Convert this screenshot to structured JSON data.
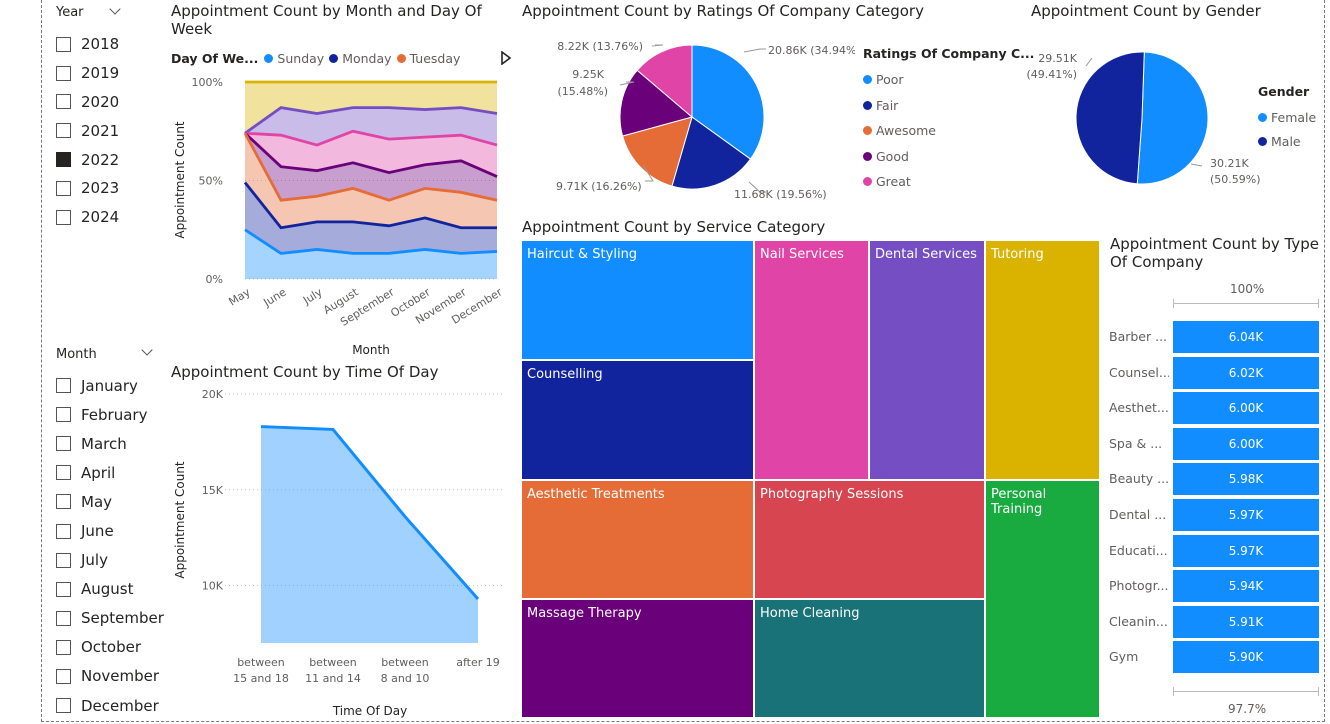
{
  "year_slicer": {
    "title": "Year",
    "items": [
      {
        "label": "2018",
        "checked": false
      },
      {
        "label": "2019",
        "checked": false
      },
      {
        "label": "2020",
        "checked": false
      },
      {
        "label": "2021",
        "checked": false
      },
      {
        "label": "2022",
        "checked": true
      },
      {
        "label": "2023",
        "checked": false
      },
      {
        "label": "2024",
        "checked": false
      }
    ]
  },
  "month_slicer": {
    "title": "Month",
    "items": [
      {
        "label": "January",
        "checked": false
      },
      {
        "label": "February",
        "checked": false
      },
      {
        "label": "March",
        "checked": false
      },
      {
        "label": "April",
        "checked": false
      },
      {
        "label": "May",
        "checked": false
      },
      {
        "label": "June",
        "checked": false
      },
      {
        "label": "July",
        "checked": false
      },
      {
        "label": "August",
        "checked": false
      },
      {
        "label": "September",
        "checked": false
      },
      {
        "label": "October",
        "checked": false
      },
      {
        "label": "November",
        "checked": false
      },
      {
        "label": "December",
        "checked": false
      }
    ]
  },
  "area_chart": {
    "title": "Appointment Count by Month and Day Of Week",
    "legend_title": "Day Of We...",
    "legend": [
      {
        "label": "Sunday",
        "color": "#118dff"
      },
      {
        "label": "Monday",
        "color": "#12239e"
      },
      {
        "label": "Tuesday",
        "color": "#e66c37"
      }
    ],
    "y_ticks": [
      "100%",
      "50%",
      "0%"
    ],
    "ylabel": "Appointment Count",
    "xlabel": "Month",
    "x_ticks": [
      "May",
      "June",
      "July",
      "August",
      "September",
      "October",
      "November",
      "December"
    ]
  },
  "line_chart": {
    "title": "Appointment Count by Time Of Day",
    "y_ticks": [
      "20K",
      "15K",
      "10K"
    ],
    "ylabel": "Appointment Count",
    "xlabel": "Time Of Day",
    "x_ticks": [
      [
        "between",
        "15 and 18"
      ],
      [
        "between",
        "11 and 14"
      ],
      [
        "between",
        "8 and 10"
      ],
      [
        "after 19"
      ]
    ]
  },
  "ratings_pie": {
    "title": "Appointment Count by Ratings Of Company Category",
    "legend_title": "Ratings Of Company C...",
    "legend": [
      {
        "label": "Poor",
        "color": "#118dff"
      },
      {
        "label": "Fair",
        "color": "#12239e"
      },
      {
        "label": "Awesome",
        "color": "#e66c37"
      },
      {
        "label": "Good",
        "color": "#6b007b"
      },
      {
        "label": "Great",
        "color": "#e044a7"
      }
    ],
    "labels": {
      "poor": "20.86K (34.94%)",
      "fair": "11.68K (19.56%)",
      "awesome": "9.71K (16.26%)",
      "good_1": "9.25K",
      "good_2": "(15.48%)",
      "great": "8.22K (13.76%)"
    }
  },
  "gender_pie": {
    "title": "Appointment Count by Gender",
    "legend_title": "Gender",
    "legend": [
      {
        "label": "Female",
        "color": "#118dff"
      },
      {
        "label": "Male",
        "color": "#12239e"
      }
    ],
    "labels": {
      "male_1": "29.51K",
      "male_2": "(49.41%)",
      "female_1": "30.21K",
      "female_2": "(50.59%)"
    }
  },
  "treemap": {
    "title": "Appointment Count by Service Category",
    "cells": [
      {
        "label": "Haircut & Styling",
        "color": "#118dff"
      },
      {
        "label": "Counselling",
        "color": "#12239e"
      },
      {
        "label": "Nail Services",
        "color": "#e044a7"
      },
      {
        "label": "Dental Services",
        "color": "#744ec2"
      },
      {
        "label": "Tutoring",
        "color": "#d9b300"
      },
      {
        "label": "Aesthetic Treatments",
        "color": "#e66c37"
      },
      {
        "label": "Photography Sessions",
        "color": "#d64550"
      },
      {
        "label": "Personal Training",
        "color": "#1aab40"
      },
      {
        "label": "Massage Therapy",
        "color": "#6b007b"
      },
      {
        "label": "Home Cleaning",
        "color": "#197278"
      }
    ]
  },
  "bar_chart": {
    "title": "Appointment Count by Type Of Company",
    "top_label": "100%",
    "bottom_label": "97.7%",
    "bar_color": "#118dff",
    "rows": [
      {
        "label": "Barber ...",
        "value": "6.04K"
      },
      {
        "label": "Counsel...",
        "value": "6.02K"
      },
      {
        "label": "Aesthet...",
        "value": "6.00K"
      },
      {
        "label": "Spa & ...",
        "value": "6.00K"
      },
      {
        "label": "Beauty ...",
        "value": "5.98K"
      },
      {
        "label": "Dental ...",
        "value": "5.97K"
      },
      {
        "label": "Educati...",
        "value": "5.97K"
      },
      {
        "label": "Photogr...",
        "value": "5.94K"
      },
      {
        "label": "Cleanin...",
        "value": "5.91K"
      },
      {
        "label": "Gym",
        "value": "5.90K"
      }
    ]
  },
  "chart_data": [
    {
      "type": "area",
      "stacking": "percent",
      "title": "Appointment Count by Month and Day Of Week",
      "xlabel": "Month",
      "ylabel": "Appointment Count",
      "categories": [
        "May",
        "June",
        "July",
        "August",
        "September",
        "October",
        "November",
        "December"
      ],
      "ylim": [
        0,
        100
      ],
      "cumulative_series": [
        {
          "name": "Sunday",
          "color": "#118dff",
          "values": [
            25,
            13,
            15,
            13,
            13,
            15,
            13,
            14
          ]
        },
        {
          "name": "Monday",
          "color": "#12239e",
          "values": [
            49,
            26,
            29,
            29,
            27,
            31,
            26,
            26
          ]
        },
        {
          "name": "Tuesday",
          "color": "#e66c37",
          "values": [
            74,
            40,
            42,
            46,
            40,
            46,
            44,
            40
          ]
        },
        {
          "color": "#6b007b",
          "values": [
            74,
            57,
            55,
            59,
            54,
            58,
            60,
            52
          ]
        },
        {
          "color": "#e044a7",
          "values": [
            74,
            73,
            68,
            75,
            71,
            72,
            73,
            68
          ]
        },
        {
          "color": "#744ec2",
          "values": [
            74,
            87,
            84,
            87,
            87,
            86,
            87,
            84
          ]
        },
        {
          "color": "#d9b300",
          "values": [
            100,
            100,
            100,
            100,
            100,
            100,
            100,
            100
          ]
        }
      ]
    },
    {
      "type": "area",
      "title": "Appointment Count by Time Of Day",
      "xlabel": "Time Of Day",
      "ylabel": "Appointment Count",
      "categories": [
        "between 15 and 18",
        "between 11 and 14",
        "between 8 and 10",
        "after 19"
      ],
      "values": [
        18300,
        18150,
        13600,
        9300
      ],
      "ylim": [
        7000,
        20000
      ]
    },
    {
      "type": "pie",
      "title": "Appointment Count by Ratings Of Company Category",
      "categories": [
        "Poor",
        "Fair",
        "Awesome",
        "Good",
        "Great"
      ],
      "values": [
        20860,
        11680,
        9710,
        9250,
        8220
      ]
    },
    {
      "type": "pie",
      "title": "Appointment Count by Gender",
      "categories": [
        "Female",
        "Male"
      ],
      "values": [
        30210,
        29510
      ]
    },
    {
      "type": "bar",
      "title": "Appointment Count by Type Of Company",
      "categories": [
        "Barber ...",
        "Counsel...",
        "Aesthet...",
        "Spa & ...",
        "Beauty ...",
        "Dental ...",
        "Educati...",
        "Photogr...",
        "Cleanin...",
        "Gym"
      ],
      "values": [
        6040,
        6020,
        6000,
        6000,
        5980,
        5970,
        5970,
        5940,
        5910,
        5900
      ]
    }
  ]
}
